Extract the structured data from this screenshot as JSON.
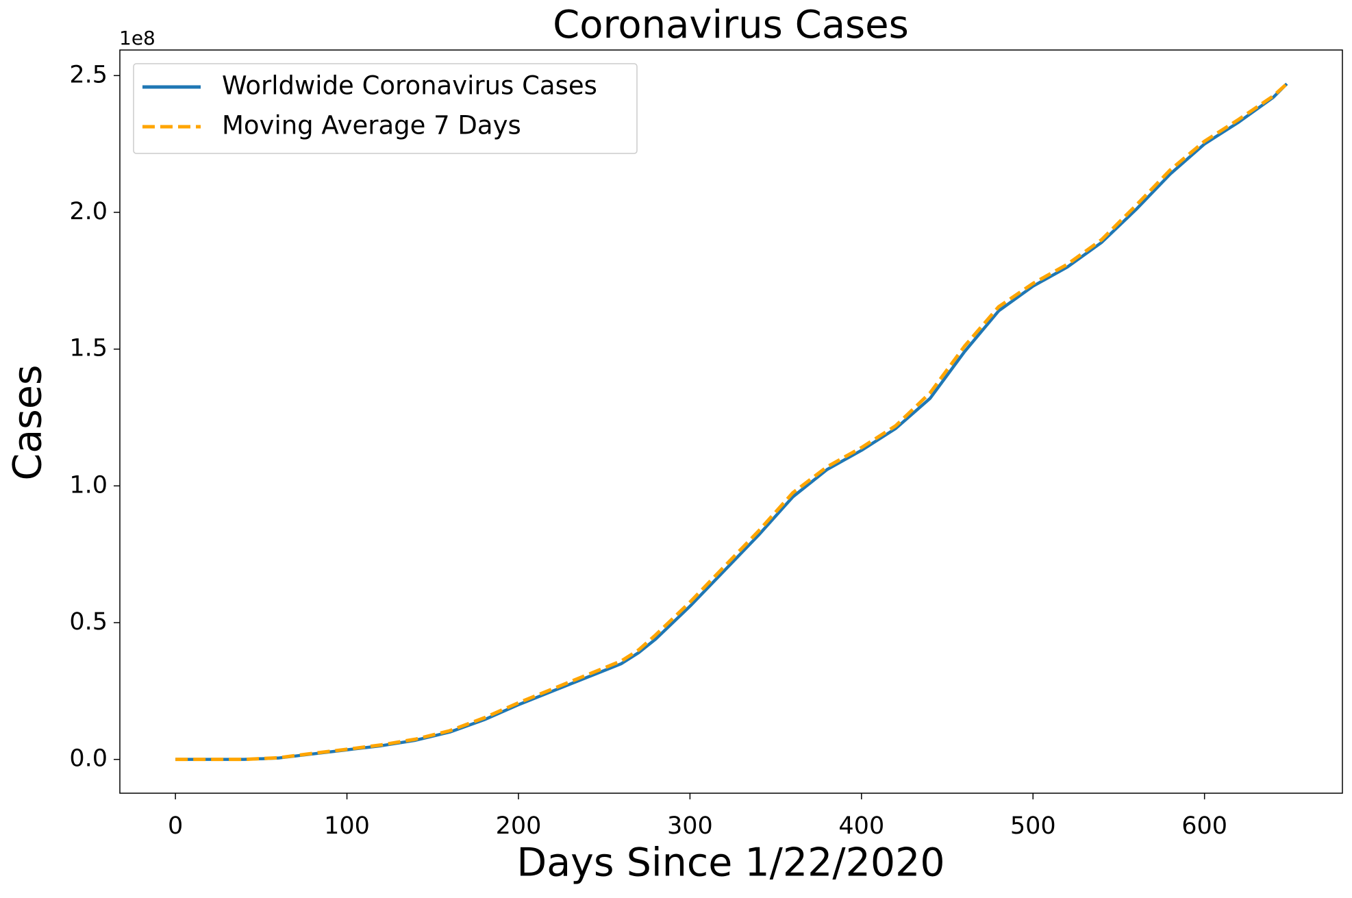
{
  "chart_data": {
    "type": "line",
    "title": "Coronavirus Cases",
    "x_label": "Days Since 1/22/2020",
    "y_label": "Cases",
    "y_offset_label": "1e8",
    "x": [
      0,
      20,
      40,
      60,
      80,
      100,
      120,
      140,
      160,
      180,
      200,
      220,
      240,
      260,
      270,
      280,
      300,
      320,
      340,
      360,
      380,
      400,
      420,
      440,
      460,
      480,
      500,
      520,
      540,
      560,
      580,
      600,
      620,
      640,
      648
    ],
    "series": [
      {
        "name": "Worldwide Coronavirus Cases",
        "color": "#1f77b4",
        "dash": false,
        "values": [
          0,
          0,
          0,
          0.005,
          0.02,
          0.035,
          0.05,
          0.07,
          0.1,
          0.145,
          0.2,
          0.25,
          0.3,
          0.35,
          0.39,
          0.44,
          0.56,
          0.69,
          0.82,
          0.96,
          1.06,
          1.13,
          1.21,
          1.32,
          1.49,
          1.64,
          1.73,
          1.8,
          1.89,
          2.01,
          2.14,
          2.25,
          2.33,
          2.42,
          2.47
        ]
      },
      {
        "name": "Moving Average 7 Days",
        "color": "#ffa500",
        "dash": true,
        "values": [
          0,
          0,
          0,
          0.006,
          0.022,
          0.037,
          0.053,
          0.074,
          0.105,
          0.152,
          0.207,
          0.258,
          0.309,
          0.36,
          0.4,
          0.455,
          0.575,
          0.705,
          0.835,
          0.975,
          1.07,
          1.14,
          1.22,
          1.34,
          1.51,
          1.655,
          1.74,
          1.81,
          1.9,
          2.025,
          2.155,
          2.26,
          2.34,
          2.425,
          2.47
        ]
      }
    ],
    "xlim": [
      -32.4,
      680.4
    ],
    "ylim": [
      -0.1235,
      2.5935
    ],
    "xticks": [
      0,
      100,
      200,
      300,
      400,
      500,
      600
    ],
    "yticks": [
      {
        "value": 0,
        "label": "0.0"
      },
      0.5,
      {
        "value": 1,
        "label": "1.0"
      },
      1.5,
      {
        "value": 2,
        "label": "2.0"
      },
      2.5
    ],
    "grid": false,
    "legend": "upper left"
  }
}
